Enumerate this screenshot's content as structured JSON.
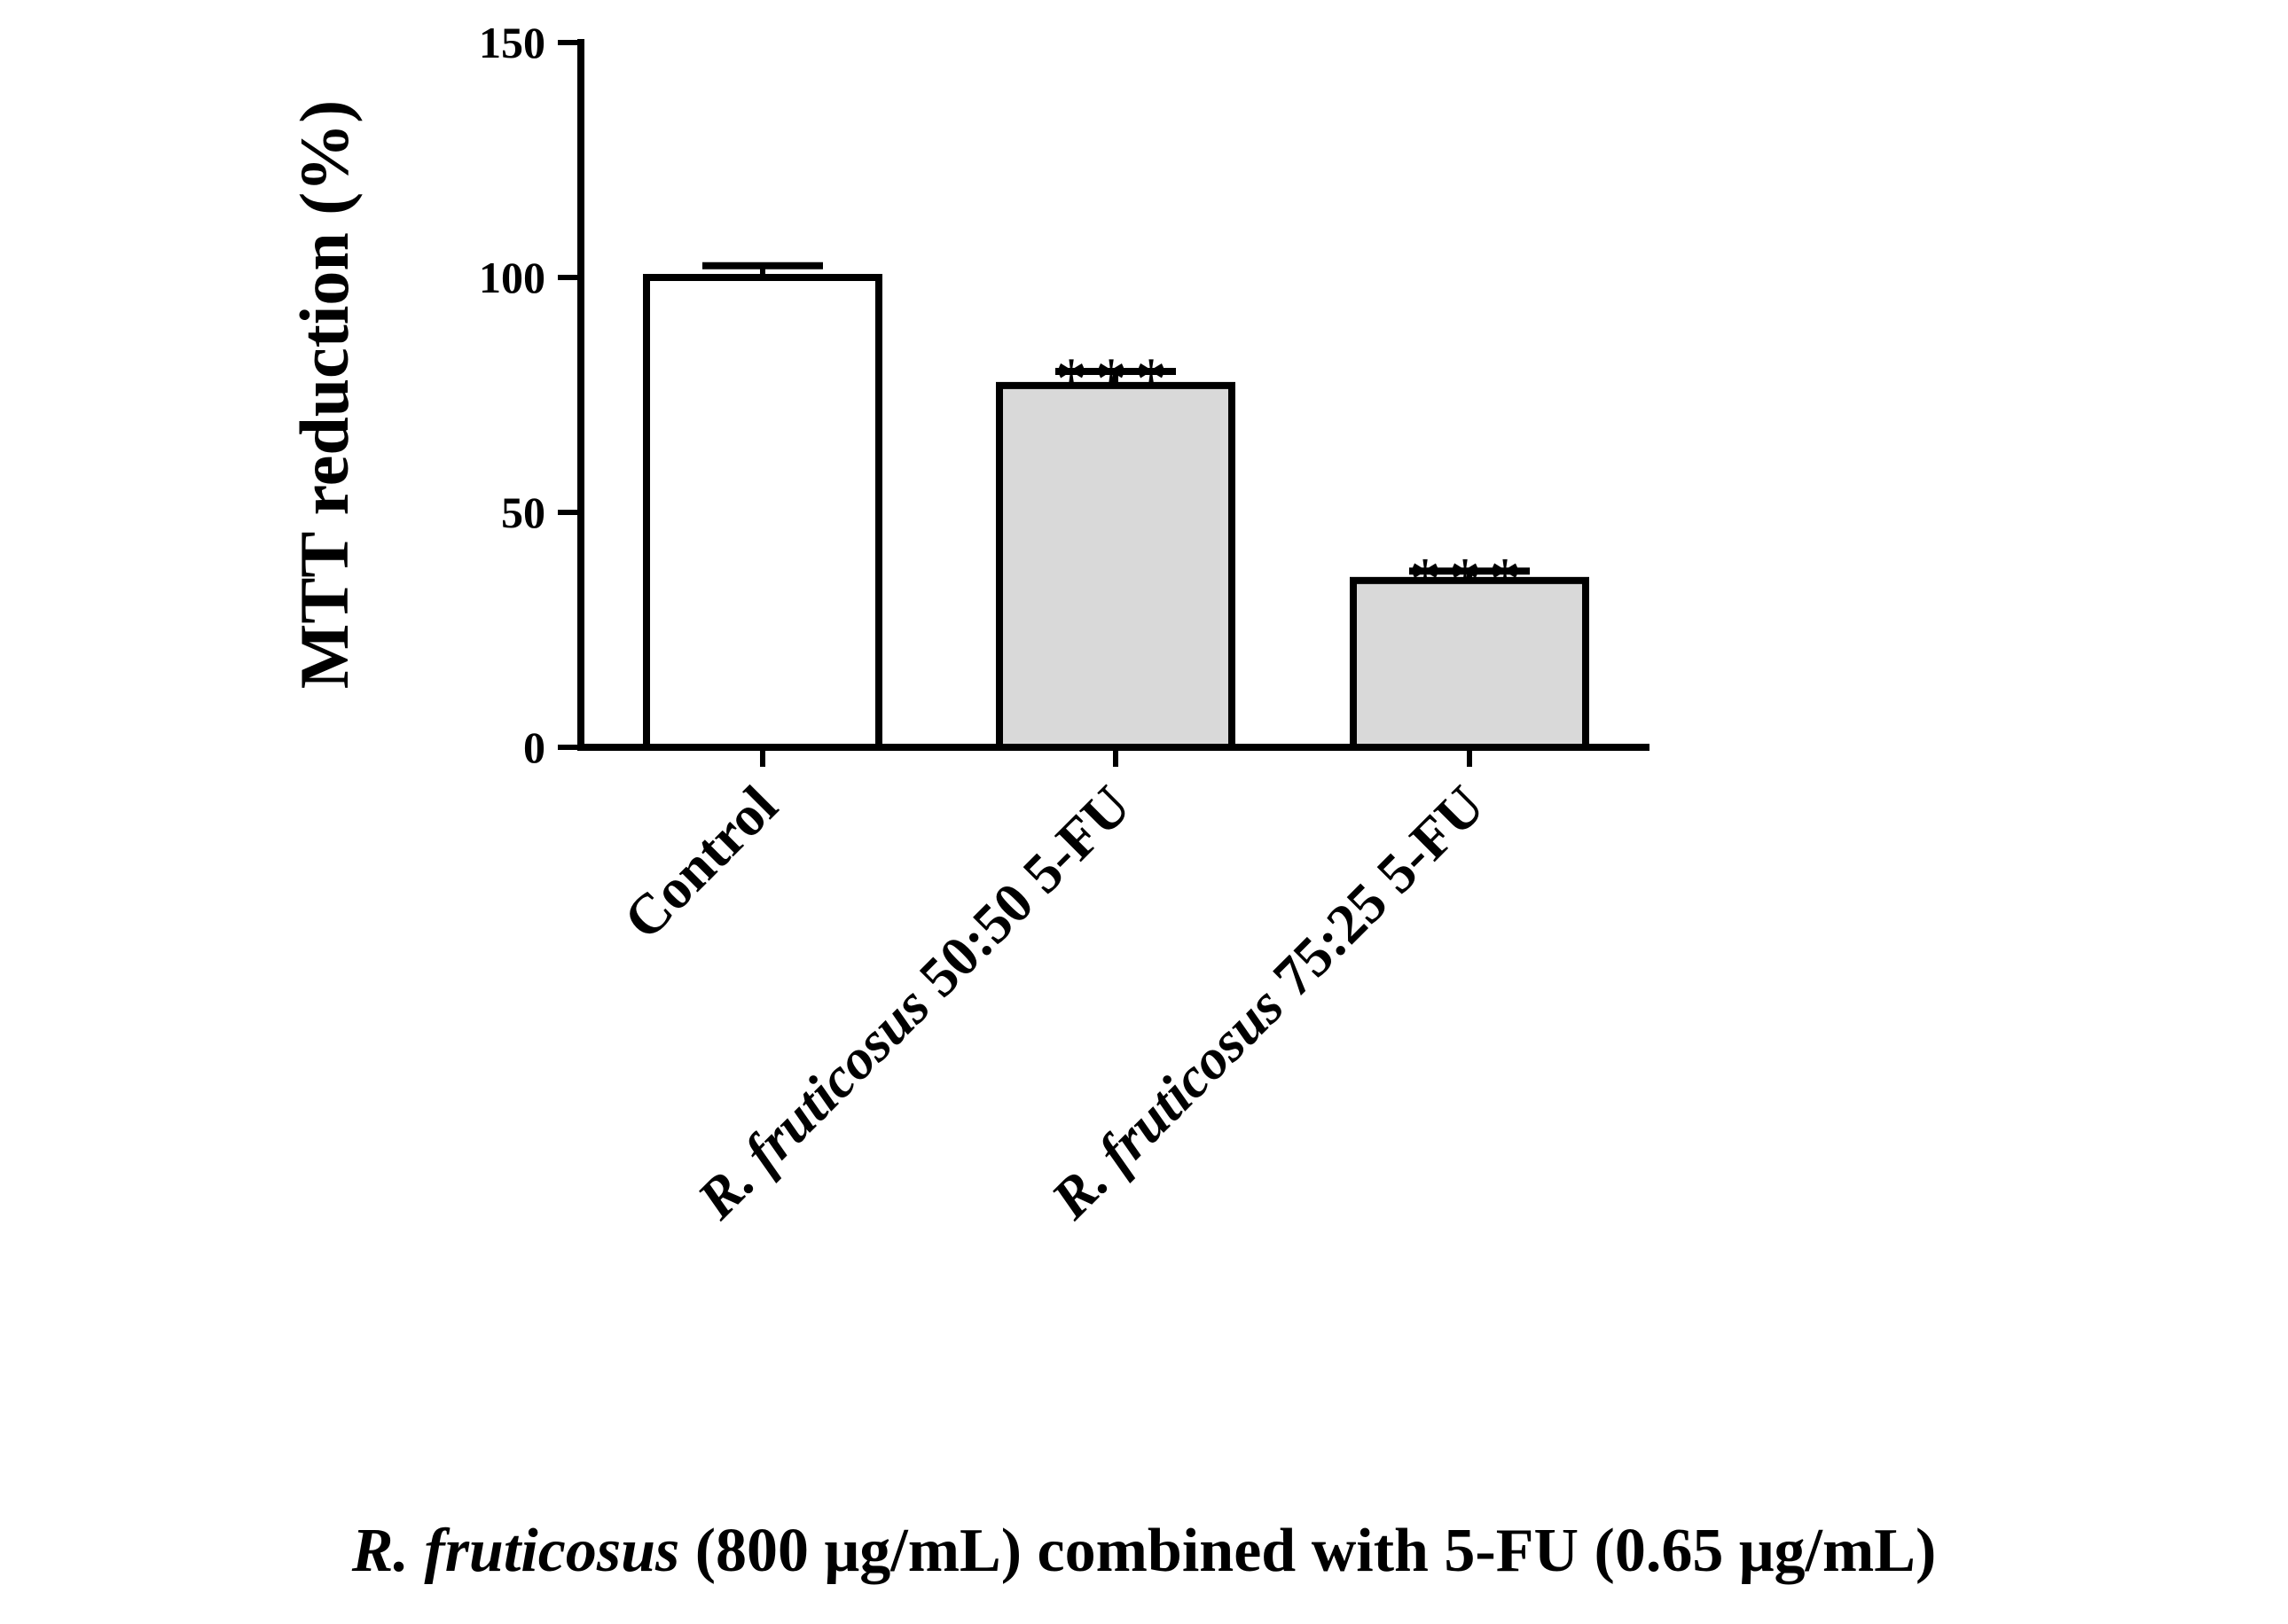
{
  "chart_data": {
    "type": "bar",
    "categories": [
      {
        "italic": "",
        "text": "Control"
      },
      {
        "italic": "R. fruticosus",
        "text": " 50:50 5-FU"
      },
      {
        "italic": "R. fruticosus",
        "text": "  75:25 5-FU"
      }
    ],
    "values": [
      100,
      77,
      35.5
    ],
    "errors": [
      2.5,
      3,
      2
    ],
    "significance": [
      "",
      "***",
      "***"
    ],
    "bar_colors": [
      "#ffffff",
      "#d9d9d9",
      "#d9d9d9"
    ],
    "ylabel": "MTT reduction (%)",
    "xlabel": {
      "italic": "R. fruticosus",
      "text": " (800 μg/mL) combined with 5-FU (0.65 μg/mL)"
    },
    "ylim": [
      0,
      150
    ],
    "yticks": [
      0,
      50,
      100,
      150
    ],
    "tick_labels": [
      "0",
      "50",
      "100",
      "150"
    ],
    "grid": false
  }
}
